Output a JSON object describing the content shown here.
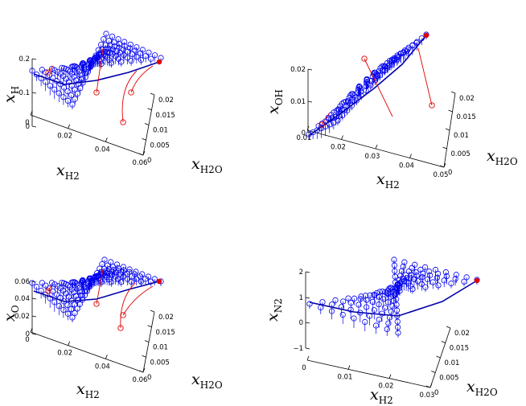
{
  "chart_data": [
    {
      "type": "scatter",
      "title": "",
      "xlabel": "x_{H_2}",
      "ylabel": "x_{H_2O}",
      "zlabel": "x_H",
      "label_parts": {
        "x": [
          "x",
          "H2"
        ],
        "y": [
          "x",
          "H2O"
        ],
        "z": [
          "x",
          "H"
        ]
      },
      "xlim": [
        0,
        0.06
      ],
      "ylim": [
        0,
        0.02
      ],
      "zlim": [
        0,
        0.2
      ],
      "xticks": [
        "0",
        "0.02",
        "0.04",
        "0.06"
      ],
      "yticks": [
        "0",
        "0.005",
        "0.01",
        "0.015",
        "0.02"
      ],
      "zticks": [
        "0",
        "0.1",
        "0.2"
      ],
      "grid": false,
      "equilibrium_point": {
        "x": 0.06,
        "y": 0.0,
        "z": 0.2
      },
      "colors": {
        "points": "#0000ee",
        "trajectories": "#e00000",
        "manifold": "#0000aa"
      }
    },
    {
      "type": "scatter",
      "title": "",
      "xlabel": "x_{H_2}",
      "ylabel": "x_{H_2O}",
      "zlabel": "x_{OH}",
      "label_parts": {
        "x": [
          "x",
          "H2"
        ],
        "y": [
          "x",
          "H2O"
        ],
        "z": [
          "x",
          "OH"
        ]
      },
      "xlim": [
        0,
        0.05
      ],
      "ylim": [
        0,
        0.02
      ],
      "zlim": [
        0,
        0.02
      ],
      "xticks": [
        "0.01",
        "0.02",
        "0.03",
        "0.04",
        "0.05"
      ],
      "yticks": [
        "0",
        "0.005",
        "0.01",
        "0.015",
        "0.02"
      ],
      "zticks": [
        "0",
        "0.01",
        "0.02"
      ],
      "grid": false,
      "equilibrium_point": {
        "x": 0.05,
        "y": 0.0,
        "z": 0.02
      },
      "colors": {
        "points": "#0000ee",
        "trajectories": "#e00000",
        "manifold": "#0000aa"
      }
    },
    {
      "type": "scatter",
      "title": "",
      "xlabel": "x_{H_2}",
      "ylabel": "x_{H_2O}",
      "zlabel": "x_O",
      "label_parts": {
        "x": [
          "x",
          "H2"
        ],
        "y": [
          "x",
          "H2O"
        ],
        "z": [
          "x",
          "O"
        ]
      },
      "xlim": [
        0,
        0.06
      ],
      "ylim": [
        0,
        0.02
      ],
      "zlim": [
        0,
        0.06
      ],
      "xticks": [
        "0",
        "0.02",
        "0.04",
        "0.06"
      ],
      "yticks": [
        "0",
        "0.005",
        "0.01",
        "0.015",
        "0.02"
      ],
      "zticks": [
        "0",
        "0.02",
        "0.04",
        "0.06"
      ],
      "grid": false,
      "equilibrium_point": {
        "x": 0.06,
        "y": 0.0,
        "z": 0.06
      },
      "colors": {
        "points": "#0000ee",
        "trajectories": "#e00000",
        "manifold": "#0000aa"
      }
    },
    {
      "type": "scatter",
      "title": "",
      "xlabel": "x_{H_2}",
      "ylabel": "x_{H_2O}",
      "zlabel": "x_{N_2}",
      "label_parts": {
        "x": [
          "x",
          "H2"
        ],
        "y": [
          "x",
          "H2O"
        ],
        "z": [
          "x",
          "N2"
        ]
      },
      "xlim": [
        0,
        0.03
      ],
      "ylim": [
        0,
        0.02
      ],
      "zlim": [
        -1,
        2
      ],
      "xticks": [
        "0",
        "0.01",
        "0.02",
        "0.03"
      ],
      "yticks": [
        "0",
        "0.005",
        "0.01",
        "0.015",
        "0.02"
      ],
      "zticks": [
        "−1",
        "0",
        "1",
        "2"
      ],
      "grid": false,
      "equilibrium_point": {
        "x": 0.03,
        "y": 0.0,
        "z": 2
      },
      "colors": {
        "points": "#0000ee",
        "trajectories": "#e00000",
        "manifold": "#0000aa"
      }
    }
  ]
}
